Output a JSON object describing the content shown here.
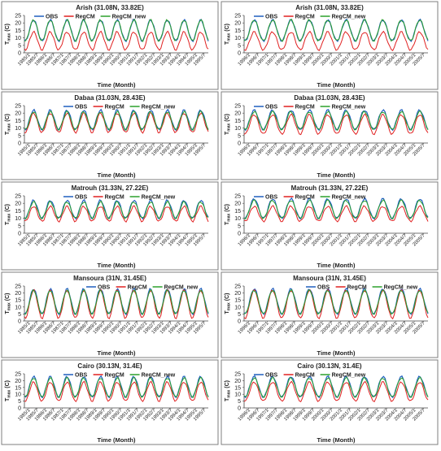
{
  "colors": {
    "obs": "#1f5fbf",
    "regcm": "#e02020",
    "regcm_new": "#2ca02c",
    "grid_border": "#7f7f7f"
  },
  "legend_labels": [
    "OBS",
    "RegCM",
    "RegCM_new"
  ],
  "chart_data": [
    {
      "type": "line",
      "title": "Arish (31.08N, 33.82E)",
      "xlabel": "Time (Month)",
      "ylabel": "T_max (C)",
      "ylim": [
        0,
        25
      ],
      "yticks": [
        0,
        5,
        10,
        15,
        20,
        25
      ],
      "legend": "top-left",
      "x_tick_labels": [
        "1985/1",
        "1985/7",
        "1986/1",
        "1986/7",
        "1987/1",
        "1987/7",
        "1988/1",
        "1988/7",
        "1989/1",
        "1989/7",
        "1990/1",
        "1990/7",
        "1991/1",
        "1991/7",
        "1992/1",
        "1992/7",
        "1993/1",
        "1993/7",
        "1994/1",
        "1994/7",
        "1995/1",
        "1995/7"
      ],
      "series": [
        {
          "name": "OBS",
          "min": 8,
          "max": 22
        },
        {
          "name": "RegCM",
          "min": 2,
          "max": 14
        },
        {
          "name": "RegCM_new",
          "min": 8,
          "max": 22
        }
      ]
    },
    {
      "type": "line",
      "title": "Arish (31.08N, 33.82E)",
      "xlabel": "Time (Month)",
      "ylabel": "T_max (C)",
      "ylim": [
        0,
        25
      ],
      "yticks": [
        0,
        5,
        10,
        15,
        20,
        25
      ],
      "legend": "top-left",
      "x_tick_labels": [
        "1996/1",
        "1996/7",
        "1997/1",
        "1997/7",
        "1998/1",
        "1998/7",
        "1999/1",
        "1999/7",
        "2000/1",
        "2000/7",
        "2001/1",
        "2001/7",
        "2002/1",
        "2002/7",
        "2003/1",
        "2003/7",
        "2004/1",
        "2004/7",
        "2005/1",
        "2005/7"
      ],
      "series": [
        {
          "name": "OBS",
          "min": 8,
          "max": 22
        },
        {
          "name": "RegCM",
          "min": 2,
          "max": 14
        },
        {
          "name": "RegCM_new",
          "min": 8,
          "max": 22
        }
      ]
    },
    {
      "type": "line",
      "title": "Dabaa (31.03N, 28.43E)",
      "xlabel": "Time (Month)",
      "ylabel": "T_max (C)",
      "ylim": [
        0,
        25
      ],
      "yticks": [
        0,
        5,
        10,
        15,
        20,
        25
      ],
      "legend": "top-center",
      "x_tick_labels": [
        "1985/1",
        "1985/7",
        "1986/1",
        "1986/7",
        "1987/1",
        "1987/7",
        "1988/1",
        "1988/7",
        "1989/1",
        "1989/7",
        "1990/1",
        "1990/7",
        "1991/1",
        "1991/7",
        "1992/1",
        "1992/7",
        "1993/1",
        "1993/7",
        "1994/1",
        "1994/7",
        "1995/1",
        "1995/7"
      ],
      "series": [
        {
          "name": "OBS",
          "min": 9,
          "max": 22
        },
        {
          "name": "RegCM",
          "min": 7,
          "max": 20
        },
        {
          "name": "RegCM_new",
          "min": 9,
          "max": 21
        }
      ]
    },
    {
      "type": "line",
      "title": "Dabaa (31.03N, 28.43E)",
      "xlabel": "Time (Month)",
      "ylabel": "T_max (C)",
      "ylim": [
        0,
        25
      ],
      "yticks": [
        0,
        5,
        10,
        15,
        20,
        25
      ],
      "legend": "top-left",
      "x_tick_labels": [
        "1996/1",
        "1996/7",
        "1997/1",
        "1997/7",
        "1998/1",
        "1998/7",
        "1999/1",
        "1999/7",
        "2000/1",
        "2000/7",
        "2001/1",
        "2001/7",
        "2002/1",
        "2002/7",
        "2003/1",
        "2003/7",
        "2004/1",
        "2004/7",
        "2005/1",
        "2005/7"
      ],
      "series": [
        {
          "name": "OBS",
          "min": 9,
          "max": 22
        },
        {
          "name": "RegCM",
          "min": 6,
          "max": 19
        },
        {
          "name": "RegCM_new",
          "min": 9,
          "max": 21
        }
      ]
    },
    {
      "type": "line",
      "title": "Matrouh (31.33N, 27.22E)",
      "xlabel": "Time (Month)",
      "ylabel": "T_max (C)",
      "ylim": [
        0,
        25
      ],
      "yticks": [
        0,
        5,
        10,
        15,
        20,
        25
      ],
      "legend": "top-center",
      "x_tick_labels": [
        "1985/1",
        "1985/7",
        "1986/1",
        "1986/7",
        "1987/1",
        "1987/7",
        "1988/1",
        "1988/7",
        "1989/1",
        "1989/7",
        "1990/1",
        "1990/7",
        "1991/1",
        "1991/7",
        "1992/1",
        "1992/7",
        "1993/1",
        "1993/7",
        "1994/1",
        "1994/7",
        "1995/1",
        "1995/7"
      ],
      "series": [
        {
          "name": "OBS",
          "min": 10,
          "max": 22
        },
        {
          "name": "RegCM",
          "min": 8,
          "max": 18
        },
        {
          "name": "RegCM_new",
          "min": 10,
          "max": 21
        }
      ]
    },
    {
      "type": "line",
      "title": "Matrouh (31.33N, 27.22E)",
      "xlabel": "Time (Month)",
      "ylabel": "T_max (C)",
      "ylim": [
        0,
        25
      ],
      "yticks": [
        0,
        5,
        10,
        15,
        20,
        25
      ],
      "legend": "top-left",
      "x_tick_labels": [
        "1996/1",
        "1996/7",
        "1997/1",
        "1997/7",
        "1998/1",
        "1998/7",
        "1999/1",
        "1999/7",
        "2000/1",
        "2000/7",
        "2001/1",
        "2001/7",
        "2002/1",
        "2002/7",
        "2003/1",
        "2003/7",
        "2004/1",
        "2004/7",
        "2005/1",
        "2005/7"
      ],
      "series": [
        {
          "name": "OBS",
          "min": 10,
          "max": 23
        },
        {
          "name": "RegCM",
          "min": 8,
          "max": 18
        },
        {
          "name": "RegCM_new",
          "min": 10,
          "max": 22
        }
      ]
    },
    {
      "type": "line",
      "title": "Mansoura (31N, 31.45E)",
      "xlabel": "Time (Month)",
      "ylabel": "T_max (C)",
      "ylim": [
        0,
        25
      ],
      "yticks": [
        0,
        5,
        10,
        15,
        20,
        25
      ],
      "legend": "top-right",
      "x_tick_labels": [
        "1985/1",
        "1985/7",
        "1986/1",
        "1986/7",
        "1987/1",
        "1987/7",
        "1988/1",
        "1988/7",
        "1989/1",
        "1989/7",
        "1990/1",
        "1990/7",
        "1991/1",
        "1991/7",
        "1992/1",
        "1992/7",
        "1993/1",
        "1993/7",
        "1994/1",
        "1994/7",
        "1995/1",
        "1995/7"
      ],
      "series": [
        {
          "name": "OBS",
          "min": 5,
          "max": 23
        },
        {
          "name": "RegCM",
          "min": 2,
          "max": 22
        },
        {
          "name": "RegCM_new",
          "min": 5,
          "max": 22
        }
      ]
    },
    {
      "type": "line",
      "title": "Mansoura (31N, 31.45E)",
      "xlabel": "Time (Month)",
      "ylabel": "T_max (C)",
      "ylim": [
        0,
        25
      ],
      "yticks": [
        0,
        5,
        10,
        15,
        20,
        25
      ],
      "legend": "top-right",
      "x_tick_labels": [
        "1996/1",
        "1996/7",
        "1997/1",
        "1997/7",
        "1998/1",
        "1998/7",
        "1999/1",
        "1999/7",
        "2000/1",
        "2000/7",
        "2001/1",
        "2001/7",
        "2002/1",
        "2002/7",
        "2003/1",
        "2003/7",
        "2004/1",
        "2004/7",
        "2005/1",
        "2005/7"
      ],
      "series": [
        {
          "name": "OBS",
          "min": 5,
          "max": 23
        },
        {
          "name": "RegCM",
          "min": 2,
          "max": 22
        },
        {
          "name": "RegCM_new",
          "min": 5,
          "max": 22
        }
      ]
    },
    {
      "type": "line",
      "title": "Cairo (30.13N, 31.4E)",
      "xlabel": "Time (Month)",
      "ylabel": "T_max (C)",
      "ylim": [
        0,
        25
      ],
      "yticks": [
        0,
        5,
        10,
        15,
        20,
        25
      ],
      "legend": "top-center",
      "x_tick_labels": [
        "1985/1",
        "1985/7",
        "1986/1",
        "1986/7",
        "1987/1",
        "1987/7",
        "1988/1",
        "1988/7",
        "1989/1",
        "1989/7",
        "1990/1",
        "1990/7",
        "1991/1",
        "1991/7",
        "1992/1",
        "1992/7",
        "1993/1",
        "1993/7",
        "1994/1",
        "1994/7",
        "1995/1",
        "1995/7"
      ],
      "series": [
        {
          "name": "OBS",
          "min": 8,
          "max": 23
        },
        {
          "name": "RegCM",
          "min": 5,
          "max": 19
        },
        {
          "name": "RegCM_new",
          "min": 8,
          "max": 22
        }
      ]
    },
    {
      "type": "line",
      "title": "Cairo (30.13N, 31.4E)",
      "xlabel": "Time (Month)",
      "ylabel": "T_max (C)",
      "ylim": [
        0,
        25
      ],
      "yticks": [
        0,
        5,
        10,
        15,
        20,
        25
      ],
      "legend": "top-left",
      "x_tick_labels": [
        "1996/1",
        "1996/7",
        "1997/1",
        "1997/7",
        "1998/1",
        "1998/7",
        "1999/1",
        "1999/7",
        "2000/1",
        "2000/7",
        "2001/1",
        "2001/7",
        "2002/1",
        "2002/7",
        "2003/1",
        "2003/7",
        "2004/1",
        "2004/7",
        "2005/1",
        "2005/7"
      ],
      "series": [
        {
          "name": "OBS",
          "min": 8,
          "max": 23
        },
        {
          "name": "RegCM",
          "min": 5,
          "max": 19
        },
        {
          "name": "RegCM_new",
          "min": 8,
          "max": 22
        }
      ]
    }
  ]
}
